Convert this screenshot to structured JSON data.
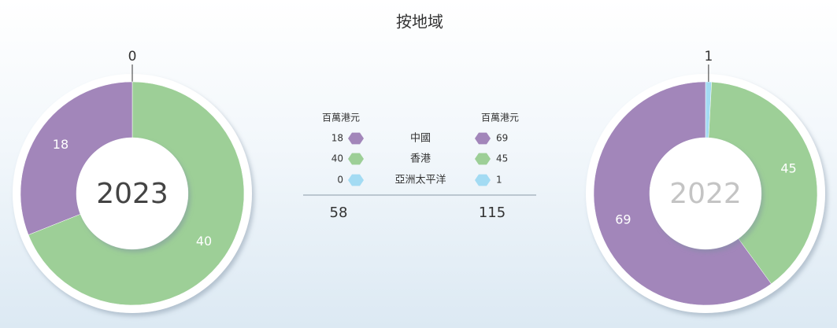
{
  "title": "按地域",
  "chart_data": [
    {
      "type": "pie",
      "title": "2023",
      "categories": [
        "中國",
        "香港",
        "亞洲太平洋"
      ],
      "values": [
        18,
        40,
        0
      ],
      "colors": [
        "#a286ba",
        "#9dcf97",
        "#a3dbf3"
      ],
      "unit": "百萬港元",
      "total": 58,
      "center_color": "#444444"
    },
    {
      "type": "pie",
      "title": "2022",
      "categories": [
        "中國",
        "香港",
        "亞洲太平洋"
      ],
      "values": [
        69,
        45,
        1
      ],
      "colors": [
        "#a286ba",
        "#9dcf97",
        "#a3dbf3"
      ],
      "unit": "百萬港元",
      "total": 115,
      "center_color": "#c4c4c4"
    }
  ]
}
